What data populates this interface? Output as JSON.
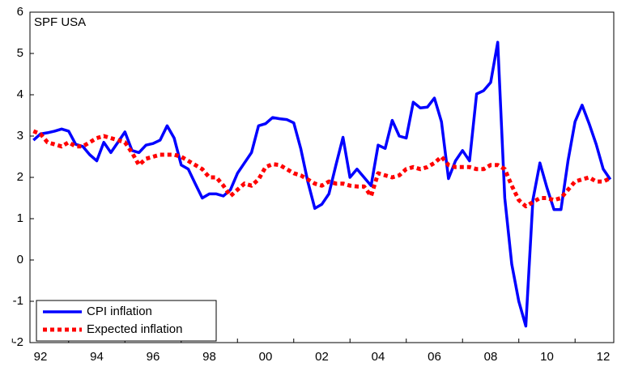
{
  "chart_data": {
    "type": "line",
    "title": "SPF USA",
    "categories": [
      null,
      "92",
      null,
      null,
      null,
      null,
      null,
      null,
      null,
      "94",
      null,
      null,
      null,
      null,
      null,
      null,
      null,
      "96",
      null,
      null,
      null,
      null,
      null,
      null,
      null,
      "98",
      null,
      null,
      null,
      null,
      null,
      null,
      null,
      "00",
      null,
      null,
      null,
      null,
      null,
      null,
      null,
      "02",
      null,
      null,
      null,
      null,
      null,
      null,
      null,
      "04",
      null,
      null,
      null,
      null,
      null,
      null,
      null,
      "06",
      null,
      null,
      null,
      null,
      null,
      null,
      null,
      "08",
      null,
      null,
      null,
      null,
      null,
      null,
      null,
      "10",
      null,
      null,
      null,
      null,
      null,
      null,
      null,
      "12",
      null
    ],
    "series": [
      {
        "name": "CPI inflation",
        "color": "#0000ff",
        "style": "solid",
        "values": [
          2.9,
          3.05,
          3.08,
          3.12,
          3.17,
          3.12,
          2.8,
          2.75,
          2.55,
          2.4,
          2.85,
          2.6,
          2.85,
          3.1,
          2.65,
          2.6,
          2.78,
          2.82,
          2.9,
          3.25,
          2.95,
          2.3,
          2.2,
          1.85,
          1.5,
          1.6,
          1.6,
          1.55,
          1.7,
          2.1,
          2.35,
          2.6,
          3.25,
          3.3,
          3.45,
          3.42,
          3.4,
          3.32,
          2.7,
          1.9,
          1.25,
          1.35,
          1.6,
          2.3,
          2.97,
          2.0,
          2.2,
          2.0,
          1.8,
          2.78,
          2.7,
          3.38,
          3.0,
          2.95,
          3.82,
          3.68,
          3.7,
          3.92,
          3.35,
          1.97,
          2.4,
          2.65,
          2.4,
          4.02,
          4.1,
          4.3,
          5.27,
          1.5,
          -0.1,
          -1.0,
          -1.6,
          1.45,
          2.35,
          1.75,
          1.22,
          1.22,
          2.4,
          3.35,
          3.75,
          3.3,
          2.8,
          2.2,
          1.95
        ]
      },
      {
        "name": "Expected inflation",
        "color": "#ff0000",
        "style": "dotted",
        "values": [
          3.12,
          3.05,
          2.85,
          2.8,
          2.75,
          2.85,
          2.75,
          2.75,
          2.85,
          2.95,
          3.0,
          2.95,
          2.9,
          2.85,
          2.6,
          2.3,
          2.45,
          2.5,
          2.55,
          2.55,
          2.55,
          2.5,
          2.4,
          2.3,
          2.2,
          2.0,
          2.0,
          1.8,
          1.55,
          1.7,
          1.85,
          1.8,
          1.95,
          2.25,
          2.32,
          2.3,
          2.2,
          2.1,
          2.05,
          1.95,
          1.85,
          1.8,
          1.9,
          1.85,
          1.85,
          1.8,
          1.78,
          1.78,
          1.55,
          2.1,
          2.05,
          2.0,
          2.05,
          2.2,
          2.25,
          2.2,
          2.25,
          2.35,
          2.5,
          2.3,
          2.25,
          2.25,
          2.25,
          2.2,
          2.2,
          2.3,
          2.3,
          2.2,
          1.8,
          1.45,
          1.3,
          1.4,
          1.5,
          1.5,
          1.45,
          1.5,
          1.7,
          1.9,
          1.95,
          2.0,
          1.9,
          1.9,
          1.98
        ]
      }
    ],
    "ylim": [
      -2,
      6
    ],
    "yticks": [
      -2,
      -1,
      0,
      1,
      2,
      3,
      4,
      5,
      6
    ],
    "grid": false,
    "legend": "lower left"
  }
}
